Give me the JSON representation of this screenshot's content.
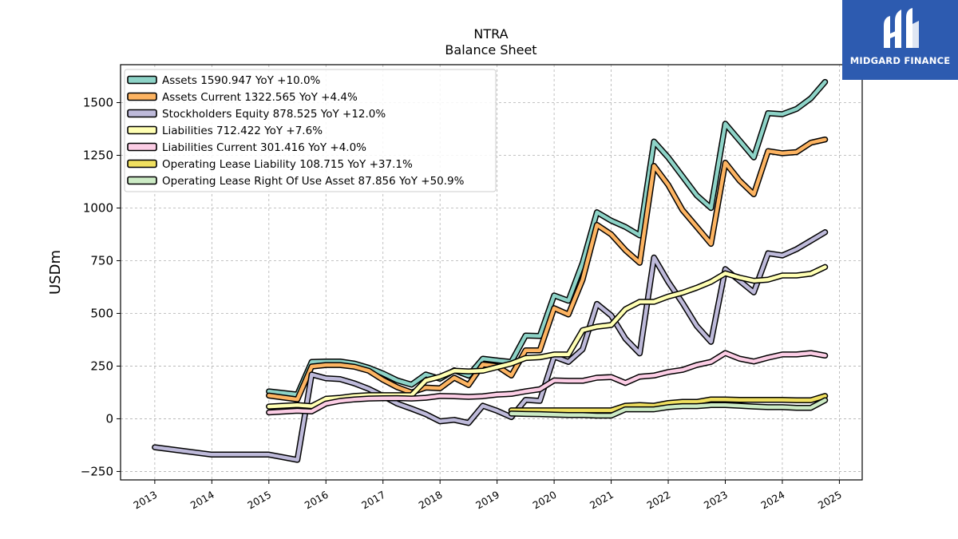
{
  "logo": {
    "text": "MIDGARD FINANCE",
    "color": "#2d5bb0"
  },
  "chart_data": {
    "type": "line",
    "title": "NTRA",
    "subtitle": "Balance  Sheet",
    "ylabel": "USDm",
    "xlabel": "",
    "ylim": [
      -290,
      1680
    ],
    "xlim": [
      2012.4,
      2025.4
    ],
    "yticks": [
      -250,
      0,
      250,
      500,
      750,
      1000,
      1250,
      1500
    ],
    "ytick_labels": [
      "−250",
      "0",
      "250",
      "500",
      "750",
      "1000",
      "1250",
      "1500"
    ],
    "xticks": [
      2013,
      2014,
      2015,
      2016,
      2017,
      2018,
      2019,
      2020,
      2021,
      2022,
      2023,
      2024,
      2025
    ],
    "xtick_labels": [
      "2013",
      "2014",
      "2015",
      "2016",
      "2017",
      "2018",
      "2019",
      "2020",
      "2021",
      "2022",
      "2023",
      "2024",
      "2025"
    ],
    "grid": true,
    "legend_position": "top-left",
    "series": [
      {
        "name": "Assets",
        "legend": "Assets  1590.947 YoY +10.0%",
        "color": "#8dd3c7",
        "x": [
          2015.0,
          2015.5,
          2015.75,
          2016.0,
          2016.25,
          2016.5,
          2016.75,
          2017.0,
          2017.25,
          2017.5,
          2017.75,
          2018.0,
          2018.25,
          2018.5,
          2018.75,
          2019.0,
          2019.25,
          2019.5,
          2019.75,
          2020.0,
          2020.25,
          2020.5,
          2020.75,
          2021.0,
          2021.25,
          2021.5,
          2021.75,
          2022.0,
          2022.25,
          2022.5,
          2022.75,
          2023.0,
          2023.25,
          2023.5,
          2023.75,
          2024.0,
          2024.25,
          2024.5,
          2024.75
        ],
        "y": [
          130,
          115,
          270,
          272,
          272,
          262,
          242,
          215,
          182,
          162,
          210,
          190,
          230,
          205,
          285,
          277,
          270,
          395,
          393,
          585,
          560,
          740,
          980,
          940,
          910,
          870,
          1315,
          1240,
          1150,
          1060,
          1000,
          1400,
          1320,
          1240,
          1450,
          1445,
          1470,
          1520,
          1598
        ]
      },
      {
        "name": "Assets Current",
        "legend": "Assets Current  1322.565 YoY +4.4%",
        "color": "#fdb462",
        "x": [
          2015.0,
          2015.5,
          2015.75,
          2016.0,
          2016.25,
          2016.5,
          2016.75,
          2017.0,
          2017.25,
          2017.5,
          2017.75,
          2018.0,
          2018.25,
          2018.5,
          2018.75,
          2019.0,
          2019.25,
          2019.5,
          2019.75,
          2020.0,
          2020.25,
          2020.5,
          2020.75,
          2021.0,
          2021.25,
          2021.5,
          2021.75,
          2022.0,
          2022.25,
          2022.5,
          2022.75,
          2023.0,
          2023.25,
          2023.5,
          2023.75,
          2024.0,
          2024.25,
          2024.5,
          2024.75
        ],
        "y": [
          110,
          92,
          248,
          255,
          255,
          247,
          228,
          185,
          150,
          125,
          148,
          145,
          195,
          160,
          258,
          250,
          205,
          325,
          325,
          525,
          495,
          660,
          920,
          875,
          800,
          740,
          1200,
          1110,
          990,
          910,
          830,
          1215,
          1130,
          1065,
          1270,
          1260,
          1265,
          1310,
          1325
        ]
      },
      {
        "name": "Stockholders Equity",
        "legend": "Stockholders Equity  878.525 YoY +12.0%",
        "color": "#bebada",
        "x": [
          2013.0,
          2014.0,
          2015.0,
          2015.5,
          2015.75,
          2016.0,
          2016.25,
          2016.5,
          2016.75,
          2017.0,
          2017.25,
          2017.5,
          2017.75,
          2018.0,
          2018.25,
          2018.5,
          2018.75,
          2019.0,
          2019.25,
          2019.5,
          2019.75,
          2020.0,
          2020.25,
          2020.5,
          2020.75,
          2021.0,
          2021.25,
          2021.5,
          2021.75,
          2022.0,
          2022.25,
          2022.5,
          2022.75,
          2023.0,
          2023.25,
          2023.5,
          2023.75,
          2024.0,
          2024.25,
          2024.5,
          2024.75
        ],
        "y": [
          -135,
          -170,
          -170,
          -195,
          210,
          192,
          188,
          168,
          142,
          108,
          72,
          48,
          22,
          -12,
          -5,
          -20,
          62,
          38,
          8,
          90,
          85,
          295,
          270,
          330,
          545,
          490,
          380,
          310,
          765,
          650,
          550,
          440,
          365,
          710,
          655,
          600,
          785,
          775,
          805,
          845,
          885
        ]
      },
      {
        "name": "Liabilities",
        "legend": "Liabilities  712.422 YoY +7.6%",
        "color": "#ffffb3",
        "x": [
          2015.0,
          2015.5,
          2015.75,
          2016.0,
          2016.25,
          2016.5,
          2016.75,
          2017.0,
          2017.25,
          2017.5,
          2017.75,
          2018.0,
          2018.25,
          2018.5,
          2018.75,
          2019.0,
          2019.25,
          2019.5,
          2019.75,
          2020.0,
          2020.25,
          2020.5,
          2020.75,
          2021.0,
          2021.25,
          2021.5,
          2021.75,
          2022.0,
          2022.25,
          2022.5,
          2022.75,
          2023.0,
          2023.25,
          2023.5,
          2023.75,
          2024.0,
          2024.25,
          2024.5,
          2024.75
        ],
        "y": [
          58,
          65,
          60,
          95,
          100,
          108,
          112,
          112,
          112,
          112,
          182,
          200,
          228,
          225,
          228,
          245,
          262,
          288,
          292,
          305,
          305,
          420,
          437,
          445,
          520,
          555,
          555,
          580,
          598,
          622,
          650,
          690,
          670,
          655,
          660,
          680,
          680,
          688,
          720
        ]
      },
      {
        "name": "Liabilities Current",
        "legend": "Liabilities Current  301.416 YoY +4.0%",
        "color": "#fccde5",
        "x": [
          2015.0,
          2015.5,
          2015.75,
          2016.0,
          2016.25,
          2016.5,
          2016.75,
          2017.0,
          2017.25,
          2017.5,
          2017.75,
          2018.0,
          2018.25,
          2018.5,
          2018.75,
          2019.0,
          2019.25,
          2019.5,
          2019.75,
          2020.0,
          2020.25,
          2020.5,
          2020.75,
          2021.0,
          2021.25,
          2021.5,
          2021.75,
          2022.0,
          2022.25,
          2022.5,
          2022.75,
          2023.0,
          2023.25,
          2023.5,
          2023.75,
          2024.0,
          2024.25,
          2024.5,
          2024.75
        ],
        "y": [
          30,
          38,
          35,
          72,
          85,
          92,
          96,
          97,
          98,
          96,
          100,
          108,
          107,
          104,
          107,
          115,
          118,
          130,
          140,
          182,
          180,
          180,
          195,
          198,
          170,
          200,
          205,
          222,
          232,
          255,
          270,
          312,
          285,
          272,
          290,
          305,
          305,
          312,
          300
        ]
      },
      {
        "name": "Operating Lease Liability",
        "legend": "Operating Lease Liability  108.715 YoY +37.1%",
        "color": "#f0e060",
        "x": [
          2019.25,
          2019.5,
          2019.75,
          2020.0,
          2020.25,
          2020.5,
          2020.75,
          2021.0,
          2021.25,
          2021.5,
          2021.75,
          2022.0,
          2022.25,
          2022.5,
          2022.75,
          2023.0,
          2023.25,
          2023.5,
          2023.75,
          2024.0,
          2024.25,
          2024.5,
          2024.75
        ],
        "y": [
          40,
          40,
          40,
          40,
          40,
          40,
          40,
          40,
          62,
          65,
          62,
          75,
          80,
          80,
          92,
          92,
          90,
          90,
          90,
          90,
          88,
          88,
          108
        ]
      },
      {
        "name": "Operating Lease Right Of Use Asset",
        "legend": "Operating Lease Right Of Use Asset  87.856 YoY +50.9%",
        "color": "#ccebc5",
        "x": [
          2019.25,
          2019.5,
          2019.75,
          2020.0,
          2020.25,
          2020.5,
          2020.75,
          2021.0,
          2021.25,
          2021.5,
          2021.75,
          2022.0,
          2022.25,
          2022.5,
          2022.75,
          2023.0,
          2023.25,
          2023.5,
          2023.75,
          2024.0,
          2024.25,
          2024.5,
          2024.75
        ],
        "y": [
          25,
          23,
          22,
          20,
          18,
          18,
          15,
          15,
          45,
          45,
          45,
          55,
          60,
          60,
          65,
          65,
          62,
          58,
          55,
          55,
          52,
          52,
          88
        ]
      }
    ]
  }
}
